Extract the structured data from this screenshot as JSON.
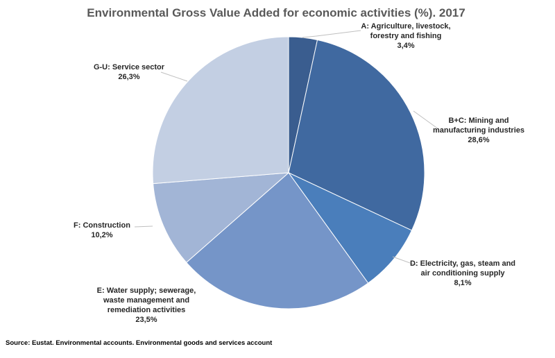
{
  "chart_data": {
    "type": "pie",
    "title": "Environmental Gross Value Added for economic activities (%). 2017",
    "source": "Source: Eustat. Environmental accounts. Environmental goods and services account",
    "slices": [
      {
        "id": "a",
        "label": [
          "A: Agriculture, livestock,",
          "forestry and fishing"
        ],
        "value_label": "3,4%",
        "value": 3.4,
        "color": "#3a5d8f"
      },
      {
        "id": "bc",
        "label": [
          "B+C: Mining and",
          "manufacturing industries"
        ],
        "value_label": "28,6%",
        "value": 28.6,
        "color": "#4069a0"
      },
      {
        "id": "d",
        "label": [
          "D: Electricity, gas, steam and",
          "air conditioning supply"
        ],
        "value_label": "8,1%",
        "value": 8.1,
        "color": "#4a7ebb"
      },
      {
        "id": "e",
        "label": [
          "E: Water supply; sewerage,",
          "waste management and",
          "remediation activities"
        ],
        "value_label": "23,5%",
        "value": 23.5,
        "color": "#7595c8"
      },
      {
        "id": "f",
        "label": [
          "F: Construction"
        ],
        "value_label": "10,2%",
        "value": 10.2,
        "color": "#a2b5d6"
      },
      {
        "id": "gu",
        "label": [
          "G-U: Service sector"
        ],
        "value_label": "26,3%",
        "value": 26.3,
        "color": "#c3cfe3"
      }
    ]
  }
}
